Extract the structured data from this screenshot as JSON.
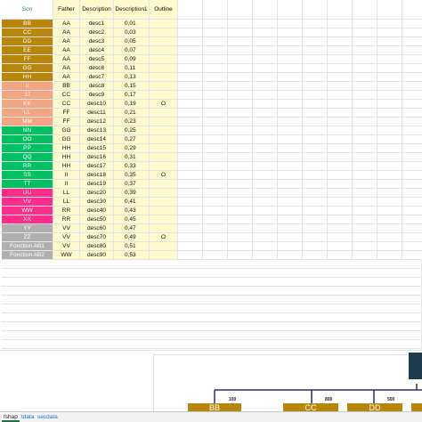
{
  "headers": {
    "son": "Son",
    "father": "Father",
    "description": "Description",
    "description1": "Description1",
    "outline": "Outline"
  },
  "rows": [
    {
      "son": "BB",
      "father": "AA",
      "desc": "desc1",
      "desc1": "0,01",
      "outline": "",
      "color": "#b8860b"
    },
    {
      "son": "CC",
      "father": "AA",
      "desc": "desc2",
      "desc1": "0,03",
      "outline": "",
      "color": "#b8860b"
    },
    {
      "son": "DD",
      "father": "AA",
      "desc": "desc3",
      "desc1": "0,05",
      "outline": "",
      "color": "#b8860b"
    },
    {
      "son": "EE",
      "father": "AA",
      "desc": "desc4",
      "desc1": "0,07",
      "outline": "",
      "color": "#b8860b"
    },
    {
      "son": "FF",
      "father": "AA",
      "desc": "desc5",
      "desc1": "0,09",
      "outline": "",
      "color": "#b8860b"
    },
    {
      "son": "GG",
      "father": "AA",
      "desc": "desc6",
      "desc1": "0,11",
      "outline": "",
      "color": "#b8860b"
    },
    {
      "son": "HH",
      "father": "AA",
      "desc": "desc7",
      "desc1": "0,13",
      "outline": "",
      "color": "#b8860b"
    },
    {
      "son": "II",
      "father": "BB",
      "desc": "desc8",
      "desc1": "0,15",
      "outline": "",
      "color": "#f4a582"
    },
    {
      "son": "JJ",
      "father": "CC",
      "desc": "desc9",
      "desc1": "0,17",
      "outline": "",
      "color": "#f4a582"
    },
    {
      "son": "KK",
      "father": "CC",
      "desc": "desc10",
      "desc1": "0,19",
      "outline": "O",
      "color": "#f4a582"
    },
    {
      "son": "LL",
      "father": "FF",
      "desc": "desc11",
      "desc1": "0,21",
      "outline": "",
      "color": "#f4a582"
    },
    {
      "son": "MM",
      "father": "FF",
      "desc": "desc12",
      "desc1": "0,23",
      "outline": "",
      "color": "#f4a582"
    },
    {
      "son": "NN",
      "father": "GG",
      "desc": "desc13",
      "desc1": "0,25",
      "outline": "",
      "color": "#00c060"
    },
    {
      "son": "OO",
      "father": "GG",
      "desc": "desc14",
      "desc1": "0,27",
      "outline": "",
      "color": "#00c060"
    },
    {
      "son": "PP",
      "father": "HH",
      "desc": "desc15",
      "desc1": "0,29",
      "outline": "",
      "color": "#00c060"
    },
    {
      "son": "QQ",
      "father": "HH",
      "desc": "desc16",
      "desc1": "0,31",
      "outline": "",
      "color": "#00c060"
    },
    {
      "son": "RR",
      "father": "HH",
      "desc": "desc17",
      "desc1": "0,33",
      "outline": "",
      "color": "#00c060"
    },
    {
      "son": "SS",
      "father": "II",
      "desc": "desc18",
      "desc1": "0,35",
      "outline": "O",
      "color": "#00c060"
    },
    {
      "son": "TT",
      "father": "II",
      "desc": "desc19",
      "desc1": "0,37",
      "outline": "",
      "color": "#00c060"
    },
    {
      "son": "UU",
      "father": "LL",
      "desc": "desc20",
      "desc1": "0,39",
      "outline": "",
      "color": "#ff2d8a"
    },
    {
      "son": "VV",
      "father": "LL",
      "desc": "desc30",
      "desc1": "0,41",
      "outline": "",
      "color": "#ff2d8a"
    },
    {
      "son": "WW",
      "father": "RR",
      "desc": "desc40",
      "desc1": "0,43",
      "outline": "",
      "color": "#ff2d8a"
    },
    {
      "son": "XX",
      "father": "RR",
      "desc": "desc50",
      "desc1": "0,45",
      "outline": "",
      "color": "#ff2d8a"
    },
    {
      "son": "YY",
      "father": "VV",
      "desc": "desc60",
      "desc1": "0,47",
      "outline": "",
      "color": "#b0b0b0"
    },
    {
      "son": "ZZ",
      "father": "VV",
      "desc": "desc70",
      "desc1": "0,49",
      "outline": "O",
      "color": "#b0b0b0"
    },
    {
      "son": "Fonction AB1",
      "father": "VV",
      "desc": "desc80",
      "desc1": "0,51",
      "outline": "",
      "color": "#b0b0b0"
    },
    {
      "son": "Fonction AB2",
      "father": "WW",
      "desc": "desc90",
      "desc1": "0,53",
      "outline": "",
      "color": "#b0b0b0"
    }
  ],
  "org_chart": {
    "nodes": [
      "BB",
      "CC",
      "DD"
    ],
    "connector_values": [
      "100",
      "800",
      "500"
    ],
    "node_color": "#b8860b",
    "line_color": "#2d2d6e"
  },
  "sheet_tabs": [
    {
      "label": "fshap",
      "active": true
    },
    {
      "label": "tdata",
      "active": false
    },
    {
      "label": "secdata",
      "active": false
    }
  ]
}
